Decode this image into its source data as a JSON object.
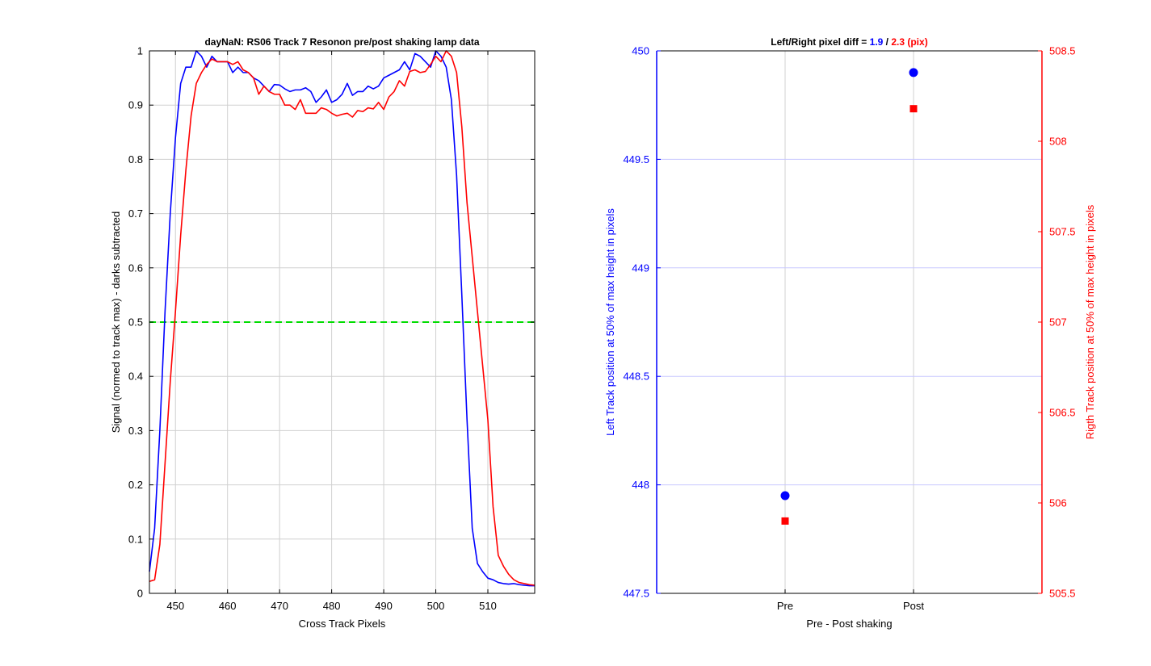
{
  "colors": {
    "left": "#0000ff",
    "right": "#ff0000",
    "threshold": "#00dd00",
    "grid": "#d0d0d0",
    "grid_right": "#c8c8ff",
    "axis": "#000000"
  },
  "chart_data": [
    {
      "type": "line",
      "title": "dayNaN: RS06  Track 7 Resonon pre/post shaking lamp data",
      "xlabel": "Cross Track Pixels",
      "ylabel": "Signal (normed to track max) - darks subtracted",
      "xlim": [
        445,
        519
      ],
      "ylim": [
        0,
        1
      ],
      "x_ticks": [
        450,
        460,
        470,
        480,
        490,
        500,
        510
      ],
      "y_ticks": [
        0,
        0.1,
        0.2,
        0.3,
        0.4,
        0.5,
        0.6,
        0.7,
        0.8,
        0.9,
        1
      ],
      "grid": true,
      "threshold": {
        "y": 0.5,
        "style": "dashed",
        "color": "#00dd00"
      },
      "series": [
        {
          "color": "#0000ff",
          "x": [
            445,
            446,
            447,
            448,
            449,
            450,
            451,
            452,
            453,
            454,
            455,
            456,
            457,
            458,
            459,
            460,
            461,
            462,
            463,
            464,
            465,
            466,
            467,
            468,
            469,
            470,
            471,
            472,
            473,
            474,
            475,
            476,
            477,
            478,
            479,
            480,
            481,
            482,
            483,
            484,
            485,
            486,
            487,
            488,
            489,
            490,
            491,
            492,
            493,
            494,
            495,
            496,
            497,
            498,
            499,
            500,
            501,
            502,
            503,
            504,
            505,
            506,
            507,
            508,
            509,
            510,
            511,
            512,
            513,
            514,
            515,
            516,
            517,
            518,
            519
          ],
          "y": [
            0.04,
            0.12,
            0.3,
            0.52,
            0.7,
            0.84,
            0.94,
            0.97,
            0.97,
            1.0,
            0.99,
            0.97,
            0.99,
            0.98,
            0.98,
            0.98,
            0.96,
            0.97,
            0.96,
            0.96,
            0.95,
            0.945,
            0.935,
            0.925,
            0.938,
            0.937,
            0.93,
            0.925,
            0.928,
            0.928,
            0.932,
            0.925,
            0.905,
            0.915,
            0.928,
            0.905,
            0.91,
            0.92,
            0.94,
            0.918,
            0.925,
            0.925,
            0.935,
            0.93,
            0.935,
            0.95,
            0.955,
            0.96,
            0.965,
            0.98,
            0.965,
            0.995,
            0.99,
            0.98,
            0.97,
            1.0,
            0.99,
            0.97,
            0.91,
            0.77,
            0.55,
            0.32,
            0.12,
            0.055,
            0.04,
            0.028,
            0.025,
            0.02,
            0.018,
            0.017,
            0.018,
            0.016,
            0.015,
            0.014,
            0.014
          ]
        },
        {
          "color": "#ff0000",
          "x": [
            445,
            446,
            447,
            448,
            449,
            450,
            451,
            452,
            453,
            454,
            455,
            456,
            457,
            458,
            459,
            460,
            461,
            462,
            463,
            464,
            465,
            466,
            467,
            468,
            469,
            470,
            471,
            472,
            473,
            474,
            475,
            476,
            477,
            478,
            479,
            480,
            481,
            482,
            483,
            484,
            485,
            486,
            487,
            488,
            489,
            490,
            491,
            492,
            493,
            494,
            495,
            496,
            497,
            498,
            499,
            500,
            501,
            502,
            503,
            504,
            505,
            506,
            507,
            508,
            509,
            510,
            511,
            512,
            513,
            514,
            515,
            516,
            517,
            518,
            519
          ],
          "y": [
            0.022,
            0.025,
            0.09,
            0.24,
            0.39,
            0.52,
            0.66,
            0.78,
            0.88,
            0.94,
            0.96,
            0.975,
            0.985,
            0.98,
            0.98,
            0.98,
            0.975,
            0.98,
            0.965,
            0.96,
            0.95,
            0.92,
            0.935,
            0.925,
            0.92,
            0.92,
            0.9,
            0.9,
            0.892,
            0.91,
            0.885,
            0.885,
            0.885,
            0.895,
            0.892,
            0.885,
            0.88,
            0.883,
            0.885,
            0.878,
            0.89,
            0.888,
            0.895,
            0.893,
            0.905,
            0.892,
            0.915,
            0.925,
            0.945,
            0.935,
            0.962,
            0.965,
            0.96,
            0.962,
            0.975,
            0.99,
            0.98,
            1.0,
            0.99,
            0.96,
            0.86,
            0.72,
            0.62,
            0.52,
            0.42,
            0.32,
            0.16,
            0.07,
            0.05,
            0.035,
            0.025,
            0.02,
            0.018,
            0.016,
            0.015
          ]
        }
      ]
    },
    {
      "type": "scatter",
      "title_parts": [
        {
          "text": "Left/Right pixel diff = ",
          "color": "#000000"
        },
        {
          "text": "1.9",
          "color": "#0000ff"
        },
        {
          "text": " / ",
          "color": "#000000"
        },
        {
          "text": "2.3 (pix)",
          "color": "#ff0000"
        }
      ],
      "xlabel": "Pre - Post shaking",
      "categories": [
        "Pre",
        "Post"
      ],
      "y_left": {
        "label": "Left Track position at 50% of max height in pixels",
        "color": "#0000ff",
        "ylim": [
          447.5,
          450
        ],
        "ticks": [
          447.5,
          448,
          448.5,
          449,
          449.5,
          450
        ],
        "values": [
          447.95,
          449.9
        ],
        "marker": "circle"
      },
      "y_right": {
        "label": "Rigth Track position at 50% of max height in pixels",
        "color": "#ff0000",
        "ylim": [
          505.5,
          508.5
        ],
        "ticks": [
          505.5,
          506,
          506.5,
          507,
          507.5,
          508,
          508.5
        ],
        "values": [
          505.9,
          508.18
        ],
        "marker": "square"
      },
      "grid": true
    }
  ]
}
